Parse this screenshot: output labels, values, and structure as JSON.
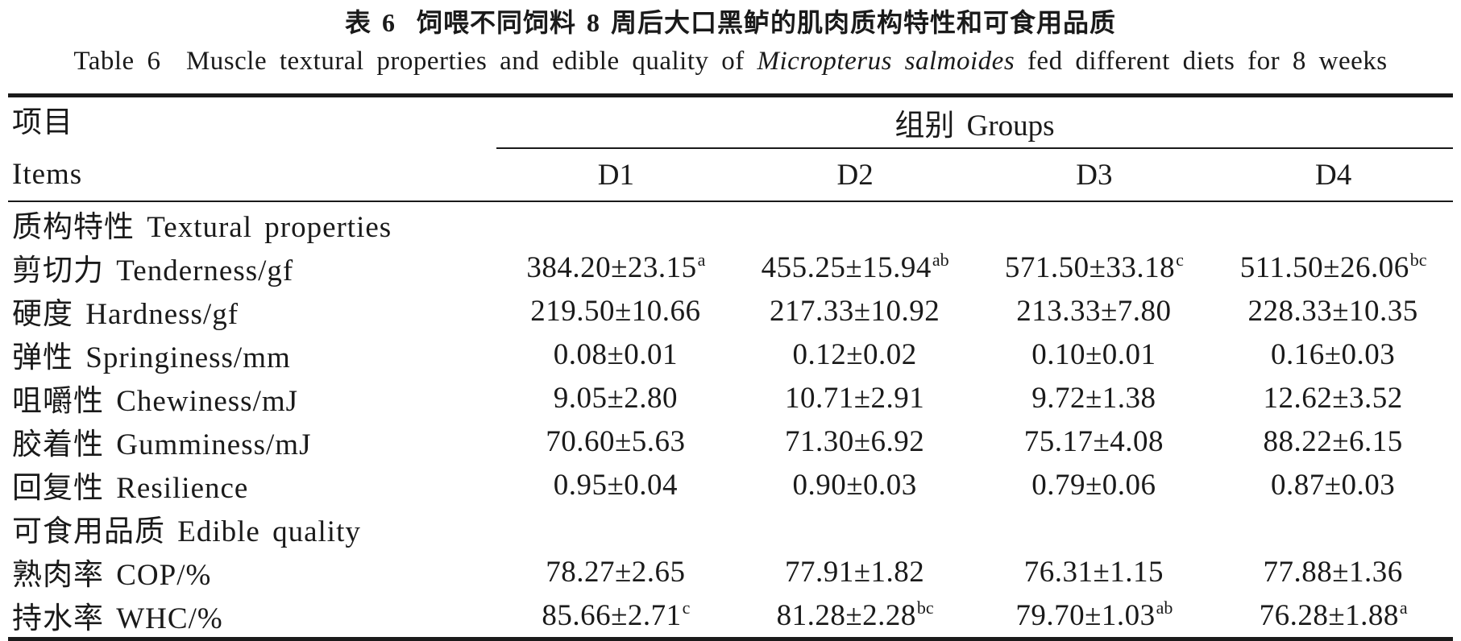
{
  "titles": {
    "zh": "表 6  饲喂不同饲料 8 周后大口黑鲈的肌肉质构特性和可食用品质",
    "en_prefix": "Table 6  Muscle textural properties and edible quality of ",
    "en_species": "Micropterus salmoides",
    "en_suffix": " fed different diets for 8 weeks"
  },
  "table": {
    "header": {
      "items_zh": "项目",
      "items_en": "Items",
      "groups": "组别 Groups",
      "columns": [
        "D1",
        "D2",
        "D3",
        "D4"
      ]
    },
    "rows": [
      {
        "label": "质构特性 Textural properties",
        "section": true,
        "values": [
          {
            "v": "",
            "s": ""
          },
          {
            "v": "",
            "s": ""
          },
          {
            "v": "",
            "s": ""
          },
          {
            "v": "",
            "s": ""
          }
        ]
      },
      {
        "label": "剪切力 Tenderness/gf",
        "section": false,
        "values": [
          {
            "v": "384.20±23.15",
            "s": "a"
          },
          {
            "v": "455.25±15.94",
            "s": "ab"
          },
          {
            "v": "571.50±33.18",
            "s": "c"
          },
          {
            "v": "511.50±26.06",
            "s": "bc"
          }
        ]
      },
      {
        "label": "硬度 Hardness/gf",
        "section": false,
        "values": [
          {
            "v": "219.50±10.66",
            "s": ""
          },
          {
            "v": "217.33±10.92",
            "s": ""
          },
          {
            "v": "213.33±7.80",
            "s": ""
          },
          {
            "v": "228.33±10.35",
            "s": ""
          }
        ]
      },
      {
        "label": "弹性 Springiness/mm",
        "section": false,
        "values": [
          {
            "v": "0.08±0.01",
            "s": ""
          },
          {
            "v": "0.12±0.02",
            "s": ""
          },
          {
            "v": "0.10±0.01",
            "s": ""
          },
          {
            "v": "0.16±0.03",
            "s": ""
          }
        ]
      },
      {
        "label": "咀嚼性 Chewiness/mJ",
        "section": false,
        "values": [
          {
            "v": "9.05±2.80",
            "s": ""
          },
          {
            "v": "10.71±2.91",
            "s": ""
          },
          {
            "v": "9.72±1.38",
            "s": ""
          },
          {
            "v": "12.62±3.52",
            "s": ""
          }
        ]
      },
      {
        "label": "胶着性 Gumminess/mJ",
        "section": false,
        "values": [
          {
            "v": "70.60±5.63",
            "s": ""
          },
          {
            "v": "71.30±6.92",
            "s": ""
          },
          {
            "v": "75.17±4.08",
            "s": ""
          },
          {
            "v": "88.22±6.15",
            "s": ""
          }
        ]
      },
      {
        "label": "回复性 Resilience",
        "section": false,
        "values": [
          {
            "v": "0.95±0.04",
            "s": ""
          },
          {
            "v": "0.90±0.03",
            "s": ""
          },
          {
            "v": "0.79±0.06",
            "s": ""
          },
          {
            "v": "0.87±0.03",
            "s": ""
          }
        ]
      },
      {
        "label": "可食用品质 Edible quality",
        "section": true,
        "values": [
          {
            "v": "",
            "s": ""
          },
          {
            "v": "",
            "s": ""
          },
          {
            "v": "",
            "s": ""
          },
          {
            "v": "",
            "s": ""
          }
        ]
      },
      {
        "label": "熟肉率 COP/%",
        "section": false,
        "values": [
          {
            "v": "78.27±2.65",
            "s": ""
          },
          {
            "v": "77.91±1.82",
            "s": ""
          },
          {
            "v": "76.31±1.15",
            "s": ""
          },
          {
            "v": "77.88±1.36",
            "s": ""
          }
        ]
      },
      {
        "label": "持水率 WHC/%",
        "section": false,
        "values": [
          {
            "v": "85.66±2.71",
            "s": "c"
          },
          {
            "v": "81.28±2.28",
            "s": "bc"
          },
          {
            "v": "79.70±1.03",
            "s": "ab"
          },
          {
            "v": "76.28±1.88",
            "s": "a"
          }
        ]
      }
    ]
  }
}
